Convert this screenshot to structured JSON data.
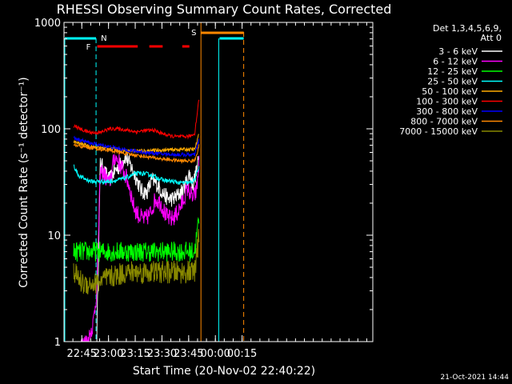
{
  "chart_data": {
    "type": "line",
    "title": "RHESSI Observing Summary Count Rates, Corrected",
    "xlabel": "Start Time (20-Nov-02 22:40:22)",
    "ylabel": "Corrected Count Rate (s⁻¹ detector⁻¹)",
    "y_scale": "log",
    "ylim": [
      1,
      1000
    ],
    "xlim": [
      -5.4,
      168
    ],
    "x_unit": "minutes after 22:40:22",
    "x_ticks": [
      {
        "label": "22:45",
        "value": 4.6
      },
      {
        "label": "23:00",
        "value": 19.6
      },
      {
        "label": "23:15",
        "value": 34.6
      },
      {
        "label": "23:30",
        "value": 49.6
      },
      {
        "label": "23:45",
        "value": 64.6
      },
      {
        "label": "00:00",
        "value": 79.6
      },
      {
        "label": "00:15",
        "value": 94.6
      }
    ],
    "y_ticks": [
      {
        "label": "1000",
        "value": 1000
      },
      {
        "label": "100",
        "value": 100
      },
      {
        "label": "10",
        "value": 10
      },
      {
        "label": "1",
        "value": 1
      }
    ],
    "legend_title": [
      "Det 1,3,4,5,6,9,",
      "Att 0"
    ],
    "legend_position": "right",
    "series": [
      {
        "name": "3 - 6 keV",
        "color": "#ffffff",
        "x": [
          13,
          15,
          17,
          20,
          23,
          26,
          29,
          32,
          35,
          38,
          41,
          44,
          47,
          50,
          53,
          56,
          59,
          62,
          65,
          67,
          69,
          70.5
        ],
        "y": [
          1,
          50,
          40,
          33,
          40,
          45,
          55,
          45,
          35,
          26,
          25,
          33,
          30,
          25,
          22,
          22,
          24,
          28,
          38,
          30,
          40,
          55
        ]
      },
      {
        "name": "6 - 12 keV",
        "color": "#ff00ff",
        "x": [
          4,
          8,
          11,
          13,
          15,
          17,
          20,
          23,
          25,
          28,
          31,
          34,
          37,
          40,
          43,
          46,
          49,
          52,
          55,
          58,
          61,
          64,
          67,
          69,
          70.5
        ],
        "y": [
          1,
          1,
          1.5,
          3,
          40,
          38,
          30,
          55,
          50,
          40,
          30,
          18,
          15,
          14,
          16,
          22,
          20,
          15,
          14,
          16,
          20,
          28,
          22,
          26,
          50
        ]
      },
      {
        "name": "12 - 25 keV",
        "color": "#00ff00",
        "x": [
          0,
          10,
          20,
          30,
          40,
          50,
          60,
          68,
          70.5
        ],
        "y": [
          7,
          7,
          7,
          7,
          7,
          7,
          7,
          7,
          15
        ]
      },
      {
        "name": "25 - 50 keV",
        "color": "#00ffff",
        "x": [
          0,
          3,
          6,
          10,
          15,
          20,
          25,
          30,
          35,
          40,
          45,
          50,
          55,
          60,
          65,
          68,
          70.5
        ],
        "y": [
          45,
          36,
          34,
          32,
          32,
          32,
          33,
          35,
          38,
          38,
          36,
          33,
          32,
          31,
          31,
          33,
          45
        ]
      },
      {
        "name": "50 - 100 keV",
        "color": "#ffaa00",
        "x": [
          0,
          10,
          20,
          30,
          40,
          50,
          60,
          68,
          70.5
        ],
        "y": [
          75,
          68,
          65,
          62,
          62,
          63,
          64,
          64,
          90
        ]
      },
      {
        "name": "100 - 300 keV",
        "color": "#ff0000",
        "x": [
          0,
          5,
          10,
          15,
          20,
          25,
          30,
          35,
          40,
          45,
          50,
          55,
          60,
          65,
          68,
          70.5
        ],
        "y": [
          108,
          97,
          92,
          92,
          100,
          100,
          97,
          94,
          96,
          97,
          90,
          85,
          84,
          85,
          90,
          200
        ]
      },
      {
        "name": "300 - 800 keV",
        "color": "#0000ff",
        "x": [
          0,
          10,
          20,
          30,
          40,
          50,
          60,
          68,
          70.5
        ],
        "y": [
          82,
          73,
          68,
          63,
          60,
          58,
          57,
          57,
          80
        ]
      },
      {
        "name": "800 - 7000 keV",
        "color": "#ff8800",
        "x": [
          0,
          10,
          20,
          30,
          40,
          50,
          60,
          68,
          70.5
        ],
        "y": [
          70,
          66,
          63,
          58,
          55,
          52,
          50,
          50,
          70
        ]
      },
      {
        "name": "7000 - 15000 keV",
        "color": "#888800",
        "x": [
          0,
          5,
          12,
          20,
          30,
          40,
          50,
          60,
          68,
          70.5
        ],
        "y": [
          4.5,
          3.5,
          3.5,
          4,
          4.5,
          4.5,
          4.5,
          4.5,
          4.5,
          10
        ]
      }
    ],
    "markers": [
      {
        "label": "N",
        "color": "#00ffff",
        "x": 12.6
      },
      {
        "label": "F",
        "color": "#ff0000"
      },
      {
        "label": "S",
        "color": "#ff8800",
        "x": 71.5
      }
    ],
    "flare_segments_minutes": [
      [
        13.3,
        36
      ],
      [
        42.5,
        50
      ],
      [
        61,
        65
      ]
    ],
    "night_segments_minutes": [
      [
        -5.4,
        12.6
      ],
      [
        81.5,
        95.5
      ]
    ],
    "saa_segment_minutes": [
      71.5,
      95.5
    ]
  },
  "footer": {
    "date_stamp": "21-Oct-2021 14:44"
  }
}
